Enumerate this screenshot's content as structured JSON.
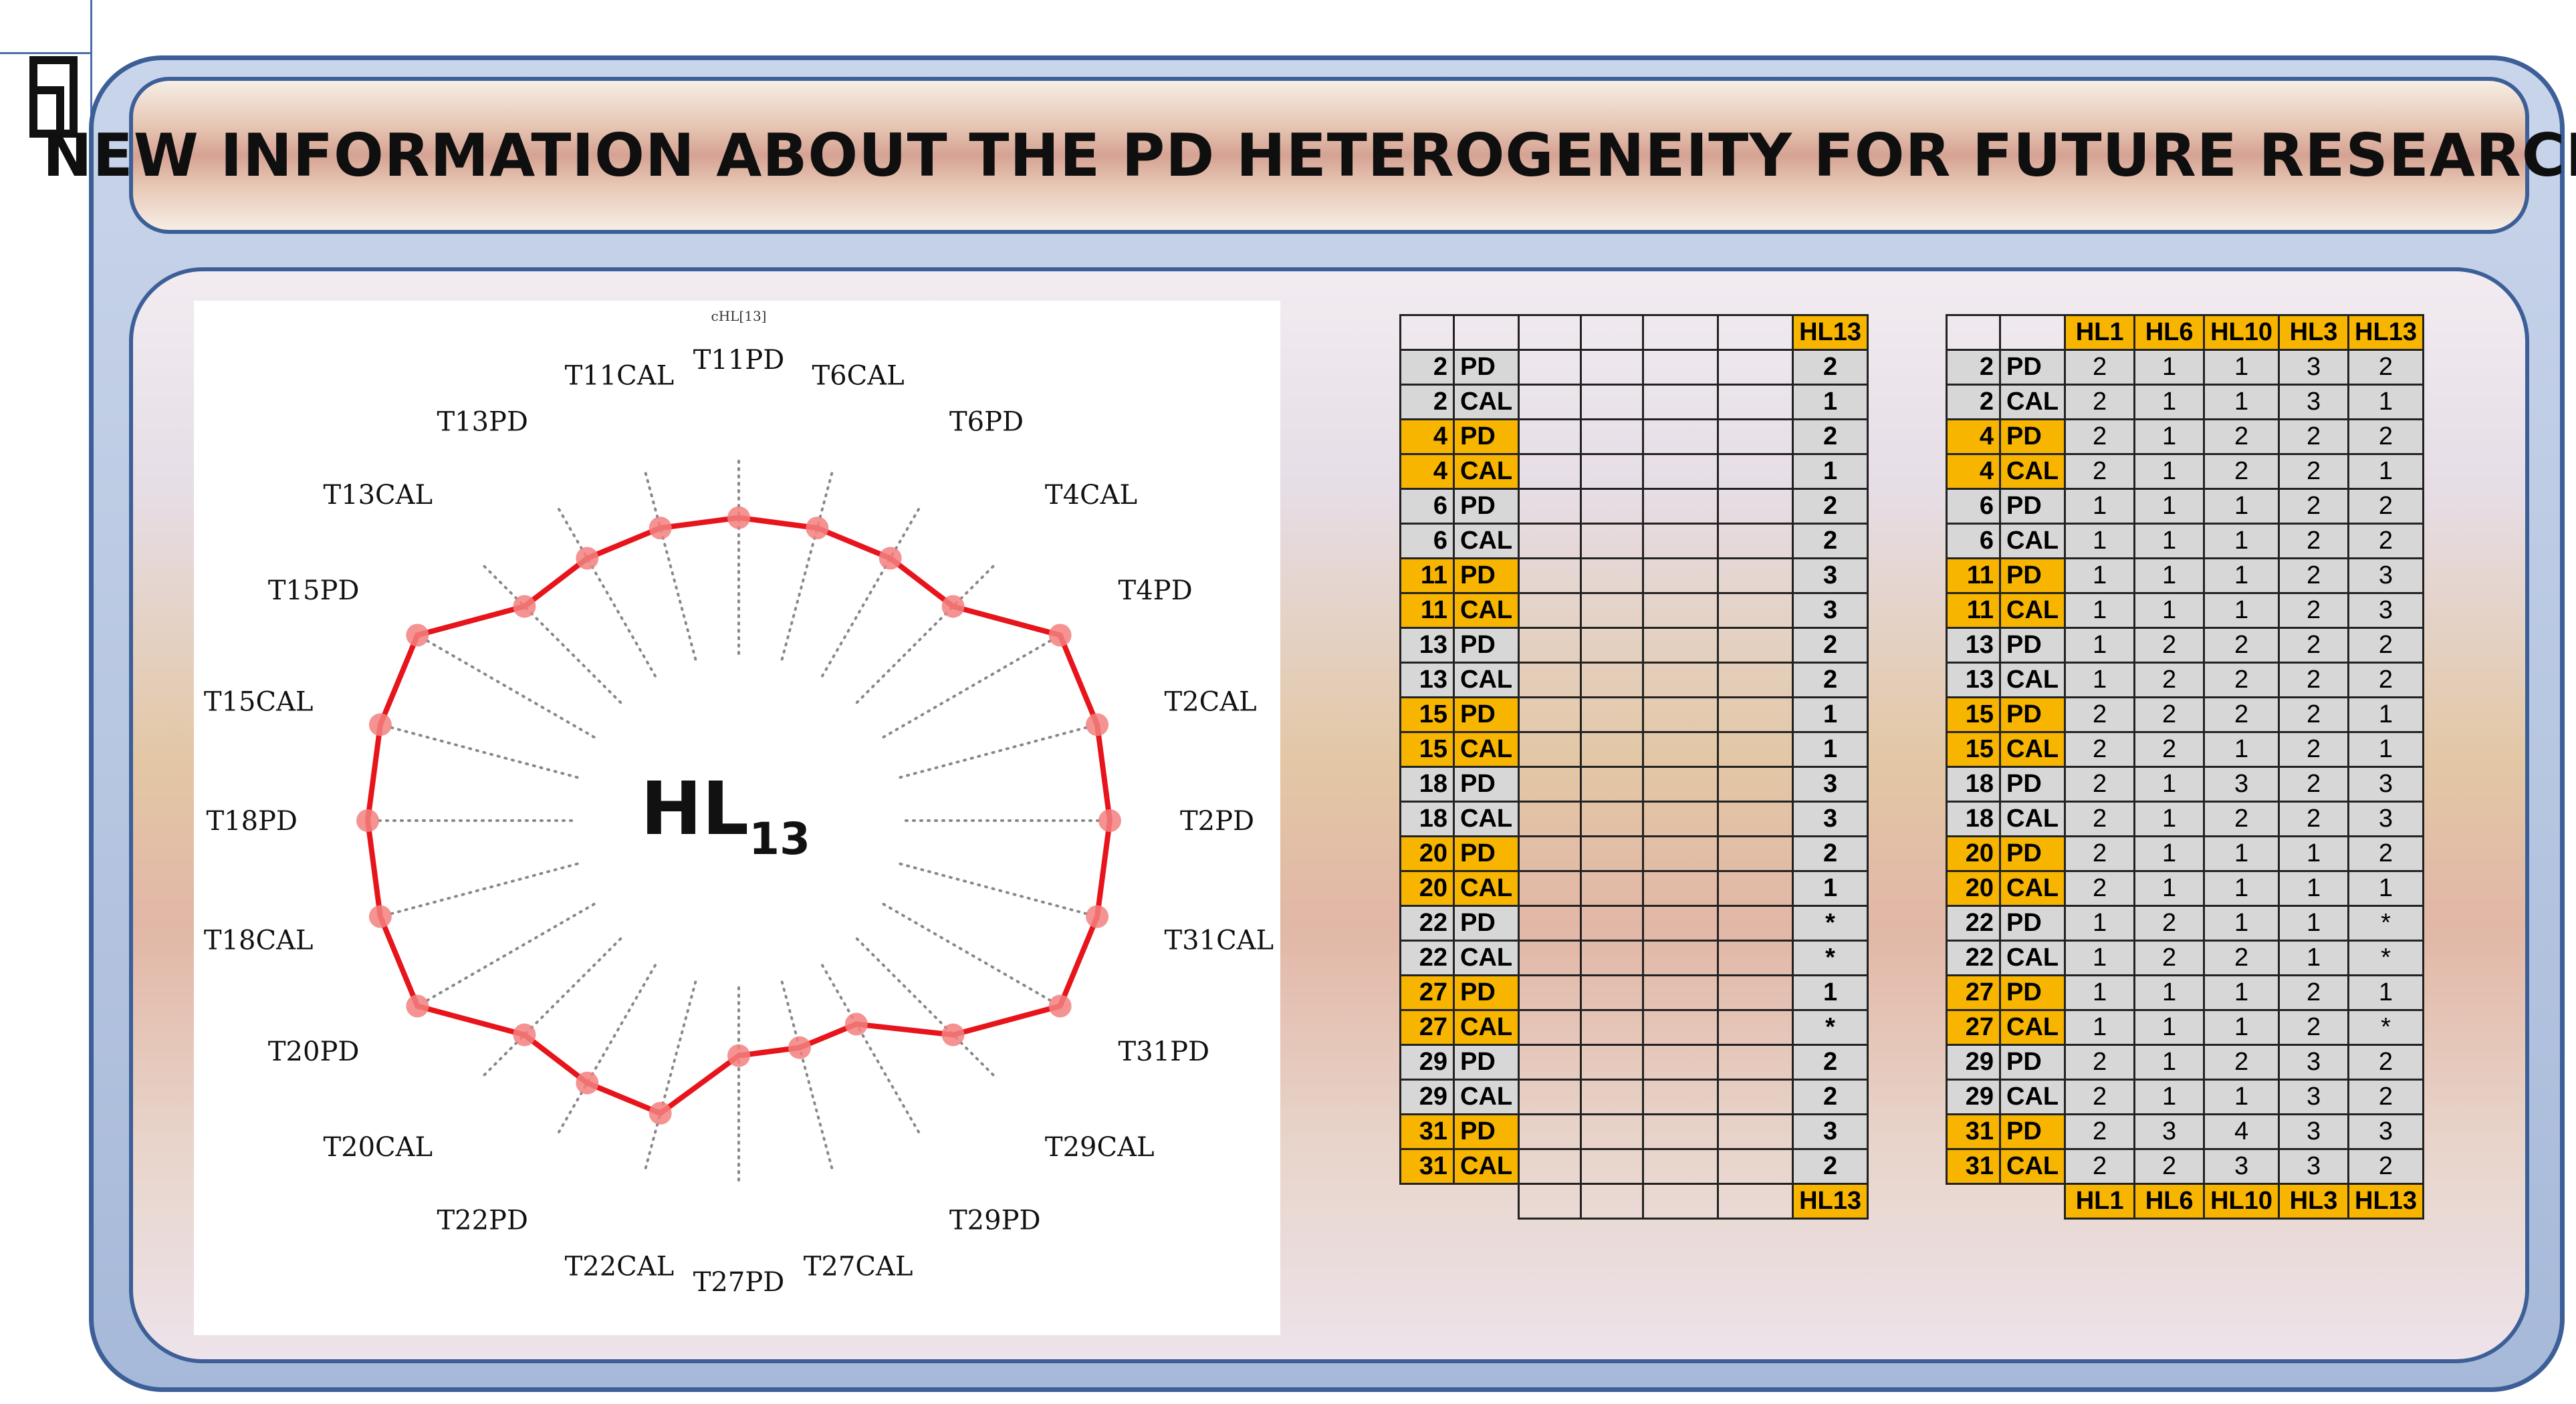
{
  "title": "NEW INFORMATION ABOUT THE PD HETEROGENEITY FOR FUTURE RESEARCH",
  "chart_data": {
    "type": "radar",
    "title": "cHL[13]",
    "center_label": "HL",
    "center_sub": "13",
    "categories": [
      "T11PD",
      "T6CAL",
      "T6PD",
      "T4CAL",
      "T4PD",
      "T2CAL",
      "T2PD",
      "T31CAL",
      "T31PD",
      "T29CAL",
      "T29PD",
      "T27CAL",
      "T27PD",
      "T22CAL",
      "T22PD",
      "T20CAL",
      "T20PD",
      "T18CAL",
      "T18PD",
      "T15CAL",
      "T15PD",
      "T13CAL",
      "T13PD",
      "T11CAL"
    ],
    "values": [
      2,
      2,
      2,
      2,
      3,
      3,
      3,
      3,
      3,
      2,
      1,
      1,
      1,
      2,
      2,
      2,
      3,
      3,
      3,
      3,
      3,
      2,
      2,
      2
    ],
    "rlim": [
      0,
      3
    ],
    "line_color": "#e8141c",
    "marker_color": "#f2807f",
    "spoke_color": "#888888"
  },
  "table1": {
    "header_last": "HL13",
    "footer_last": "HL13",
    "rows": [
      {
        "num": "2",
        "lbl": "PD",
        "hl13": "2",
        "hl": false
      },
      {
        "num": "2",
        "lbl": "CAL",
        "hl13": "1",
        "hl": false
      },
      {
        "num": "4",
        "lbl": "PD",
        "hl13": "2",
        "hl": true
      },
      {
        "num": "4",
        "lbl": "CAL",
        "hl13": "1",
        "hl": true
      },
      {
        "num": "6",
        "lbl": "PD",
        "hl13": "2",
        "hl": false
      },
      {
        "num": "6",
        "lbl": "CAL",
        "hl13": "2",
        "hl": false
      },
      {
        "num": "11",
        "lbl": "PD",
        "hl13": "3",
        "hl": true
      },
      {
        "num": "11",
        "lbl": "CAL",
        "hl13": "3",
        "hl": true
      },
      {
        "num": "13",
        "lbl": "PD",
        "hl13": "2",
        "hl": false
      },
      {
        "num": "13",
        "lbl": "CAL",
        "hl13": "2",
        "hl": false
      },
      {
        "num": "15",
        "lbl": "PD",
        "hl13": "1",
        "hl": true
      },
      {
        "num": "15",
        "lbl": "CAL",
        "hl13": "1",
        "hl": true
      },
      {
        "num": "18",
        "lbl": "PD",
        "hl13": "3",
        "hl": false
      },
      {
        "num": "18",
        "lbl": "CAL",
        "hl13": "3",
        "hl": false
      },
      {
        "num": "20",
        "lbl": "PD",
        "hl13": "2",
        "hl": true
      },
      {
        "num": "20",
        "lbl": "CAL",
        "hl13": "1",
        "hl": true
      },
      {
        "num": "22",
        "lbl": "PD",
        "hl13": "*",
        "hl": false
      },
      {
        "num": "22",
        "lbl": "CAL",
        "hl13": "*",
        "hl": false
      },
      {
        "num": "27",
        "lbl": "PD",
        "hl13": "1",
        "hl": true
      },
      {
        "num": "27",
        "lbl": "CAL",
        "hl13": "*",
        "hl": true
      },
      {
        "num": "29",
        "lbl": "PD",
        "hl13": "2",
        "hl": false
      },
      {
        "num": "29",
        "lbl": "CAL",
        "hl13": "2",
        "hl": false
      },
      {
        "num": "31",
        "lbl": "PD",
        "hl13": "3",
        "hl": true
      },
      {
        "num": "31",
        "lbl": "CAL",
        "hl13": "2",
        "hl": true
      }
    ]
  },
  "table2": {
    "headers": [
      "HL1",
      "HL6",
      "HL10",
      "HL3",
      "HL13"
    ],
    "rows": [
      {
        "num": "2",
        "lbl": "PD",
        "v": [
          "2",
          "1",
          "1",
          "3",
          "2"
        ],
        "hl": false
      },
      {
        "num": "2",
        "lbl": "CAL",
        "v": [
          "2",
          "1",
          "1",
          "3",
          "1"
        ],
        "hl": false
      },
      {
        "num": "4",
        "lbl": "PD",
        "v": [
          "2",
          "1",
          "2",
          "2",
          "2"
        ],
        "hl": true
      },
      {
        "num": "4",
        "lbl": "CAL",
        "v": [
          "2",
          "1",
          "2",
          "2",
          "1"
        ],
        "hl": true
      },
      {
        "num": "6",
        "lbl": "PD",
        "v": [
          "1",
          "1",
          "1",
          "2",
          "2"
        ],
        "hl": false
      },
      {
        "num": "6",
        "lbl": "CAL",
        "v": [
          "1",
          "1",
          "1",
          "2",
          "2"
        ],
        "hl": false
      },
      {
        "num": "11",
        "lbl": "PD",
        "v": [
          "1",
          "1",
          "1",
          "2",
          "3"
        ],
        "hl": true
      },
      {
        "num": "11",
        "lbl": "CAL",
        "v": [
          "1",
          "1",
          "1",
          "2",
          "3"
        ],
        "hl": true
      },
      {
        "num": "13",
        "lbl": "PD",
        "v": [
          "1",
          "2",
          "2",
          "2",
          "2"
        ],
        "hl": false
      },
      {
        "num": "13",
        "lbl": "CAL",
        "v": [
          "1",
          "2",
          "2",
          "2",
          "2"
        ],
        "hl": false
      },
      {
        "num": "15",
        "lbl": "PD",
        "v": [
          "2",
          "2",
          "2",
          "2",
          "1"
        ],
        "hl": true
      },
      {
        "num": "15",
        "lbl": "CAL",
        "v": [
          "2",
          "2",
          "1",
          "2",
          "1"
        ],
        "hl": true
      },
      {
        "num": "18",
        "lbl": "PD",
        "v": [
          "2",
          "1",
          "3",
          "2",
          "3"
        ],
        "hl": false
      },
      {
        "num": "18",
        "lbl": "CAL",
        "v": [
          "2",
          "1",
          "2",
          "2",
          "3"
        ],
        "hl": false
      },
      {
        "num": "20",
        "lbl": "PD",
        "v": [
          "2",
          "1",
          "1",
          "1",
          "2"
        ],
        "hl": true
      },
      {
        "num": "20",
        "lbl": "CAL",
        "v": [
          "2",
          "1",
          "1",
          "1",
          "1"
        ],
        "hl": true
      },
      {
        "num": "22",
        "lbl": "PD",
        "v": [
          "1",
          "2",
          "1",
          "1",
          "*"
        ],
        "hl": false
      },
      {
        "num": "22",
        "lbl": "CAL",
        "v": [
          "1",
          "2",
          "2",
          "1",
          "*"
        ],
        "hl": false
      },
      {
        "num": "27",
        "lbl": "PD",
        "v": [
          "1",
          "1",
          "1",
          "2",
          "1"
        ],
        "hl": true
      },
      {
        "num": "27",
        "lbl": "CAL",
        "v": [
          "1",
          "1",
          "1",
          "2",
          "*"
        ],
        "hl": true
      },
      {
        "num": "29",
        "lbl": "PD",
        "v": [
          "2",
          "1",
          "2",
          "3",
          "2"
        ],
        "hl": false
      },
      {
        "num": "29",
        "lbl": "CAL",
        "v": [
          "2",
          "1",
          "1",
          "3",
          "2"
        ],
        "hl": false
      },
      {
        "num": "31",
        "lbl": "PD",
        "v": [
          "2",
          "3",
          "4",
          "3",
          "3"
        ],
        "hl": true
      },
      {
        "num": "31",
        "lbl": "CAL",
        "v": [
          "2",
          "2",
          "3",
          "3",
          "2"
        ],
        "hl": true
      }
    ]
  }
}
